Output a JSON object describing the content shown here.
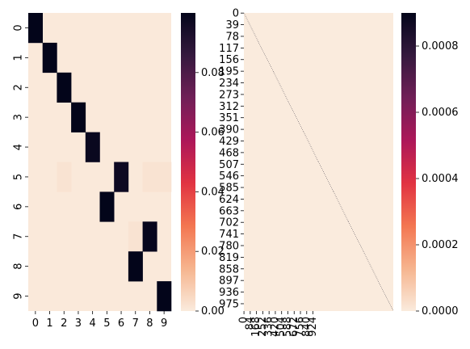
{
  "chart_data": [
    {
      "type": "heatmap",
      "x_tick_labels": [
        "0",
        "1",
        "2",
        "3",
        "4",
        "5",
        "6",
        "7",
        "8",
        "9"
      ],
      "y_tick_labels": [
        "0",
        "1",
        "2",
        "3",
        "4",
        "5",
        "6",
        "7",
        "8",
        "9"
      ],
      "background_value": 0.0005,
      "cells": [
        {
          "row": 0,
          "col": 0,
          "value": 0.1
        },
        {
          "row": 1,
          "col": 1,
          "value": 0.1
        },
        {
          "row": 2,
          "col": 2,
          "value": 0.1
        },
        {
          "row": 3,
          "col": 3,
          "value": 0.1
        },
        {
          "row": 4,
          "col": 4,
          "value": 0.098
        },
        {
          "row": 5,
          "col": 6,
          "value": 0.097
        },
        {
          "row": 5,
          "col": 2,
          "value": 0.002
        },
        {
          "row": 5,
          "col": 8,
          "value": 0.002
        },
        {
          "row": 5,
          "col": 9,
          "value": 0.002
        },
        {
          "row": 6,
          "col": 5,
          "value": 0.1
        },
        {
          "row": 7,
          "col": 7,
          "value": 0.002
        },
        {
          "row": 7,
          "col": 8,
          "value": 0.099
        },
        {
          "row": 8,
          "col": 7,
          "value": 0.1
        },
        {
          "row": 9,
          "col": 9,
          "value": 0.1
        }
      ],
      "colorbar": {
        "min": 0.0,
        "max": 0.1,
        "ticks": [
          "0.00",
          "0.02",
          "0.04",
          "0.06",
          "0.08"
        ]
      },
      "colormap": [
        "#faebdd",
        "#f6b48e",
        "#f37651",
        "#e13342",
        "#ad1759",
        "#701f57",
        "#35193e",
        "#03051a"
      ]
    },
    {
      "type": "heatmap",
      "size": 1000,
      "x_tick_labels": [
        "0",
        "84",
        "168",
        "252",
        "336",
        "420",
        "504",
        "588",
        "672",
        "756",
        "840",
        "924"
      ],
      "x_tick_step": 42,
      "y_tick_labels": [
        "0",
        "39",
        "78",
        "117",
        "156",
        "195",
        "234",
        "273",
        "312",
        "351",
        "390",
        "429",
        "468",
        "507",
        "546",
        "585",
        "624",
        "663",
        "702",
        "741",
        "780",
        "819",
        "858",
        "897",
        "936",
        "975"
      ],
      "y_tick_step": 39,
      "pattern": "block-diagonal",
      "block_size": 100,
      "block_diagonal_value": 0.0009,
      "background_value": 0.0,
      "colorbar": {
        "min": 0.0,
        "max": 0.0009,
        "ticks": [
          "0.0000",
          "0.0002",
          "0.0004",
          "0.0006",
          "0.0008"
        ]
      },
      "colormap": [
        "#faebdd",
        "#f6b48e",
        "#f37651",
        "#e13342",
        "#ad1759",
        "#701f57",
        "#35193e",
        "#03051a"
      ]
    }
  ]
}
